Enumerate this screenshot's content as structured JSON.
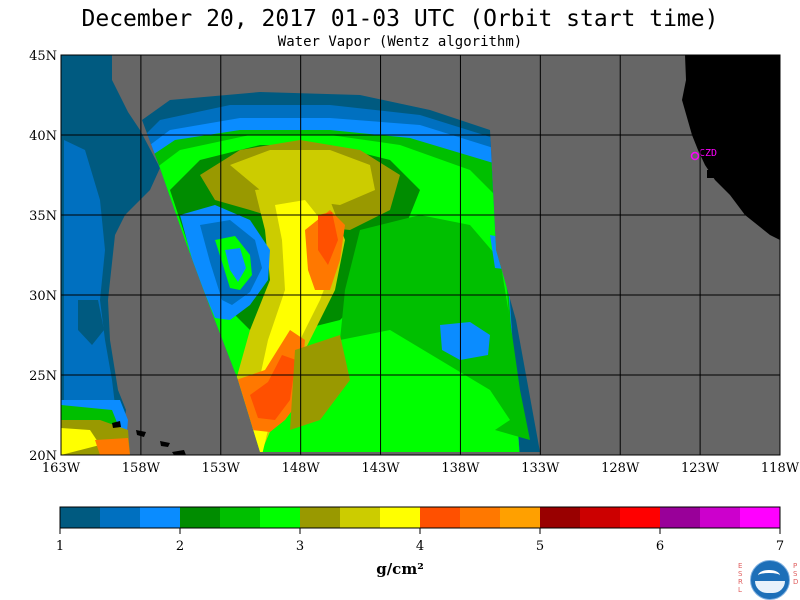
{
  "title": "December 20, 2017  01-03 UTC  (Orbit start time)",
  "subtitle": "Water Vapor (Wentz algorithm)",
  "map": {
    "lat_labels": [
      "45N",
      "40N",
      "35N",
      "30N",
      "25N",
      "20N"
    ],
    "lon_labels": [
      "163W",
      "158W",
      "153W",
      "148W",
      "143W",
      "138W",
      "133W",
      "128W",
      "123W",
      "118W"
    ],
    "lat_range": [
      20,
      45
    ],
    "lon_range": [
      -163,
      -118
    ],
    "station_label": "CZD",
    "colors": {
      "no_data": "#666666",
      "land": "#000000",
      "station": "#ff00ff",
      "grid": "#000000"
    }
  },
  "colorbar": {
    "tick_labels": [
      "1",
      "2",
      "3",
      "4",
      "5",
      "6",
      "7"
    ],
    "units": "g/cm²",
    "range": [
      1,
      7
    ],
    "colors": [
      "#005a80",
      "#0070c0",
      "#0a8cff",
      "#008c00",
      "#00bf00",
      "#00ff00",
      "#999900",
      "#cccc00",
      "#ffff00",
      "#ff5000",
      "#ff7800",
      "#ffa000",
      "#990000",
      "#cc0000",
      "#ff0000",
      "#990099",
      "#cc00cc",
      "#ff00ff"
    ]
  },
  "logo": {
    "left_letters": [
      "E",
      "S",
      "R",
      "L"
    ],
    "right_letters": [
      "P",
      "S",
      "D"
    ]
  }
}
